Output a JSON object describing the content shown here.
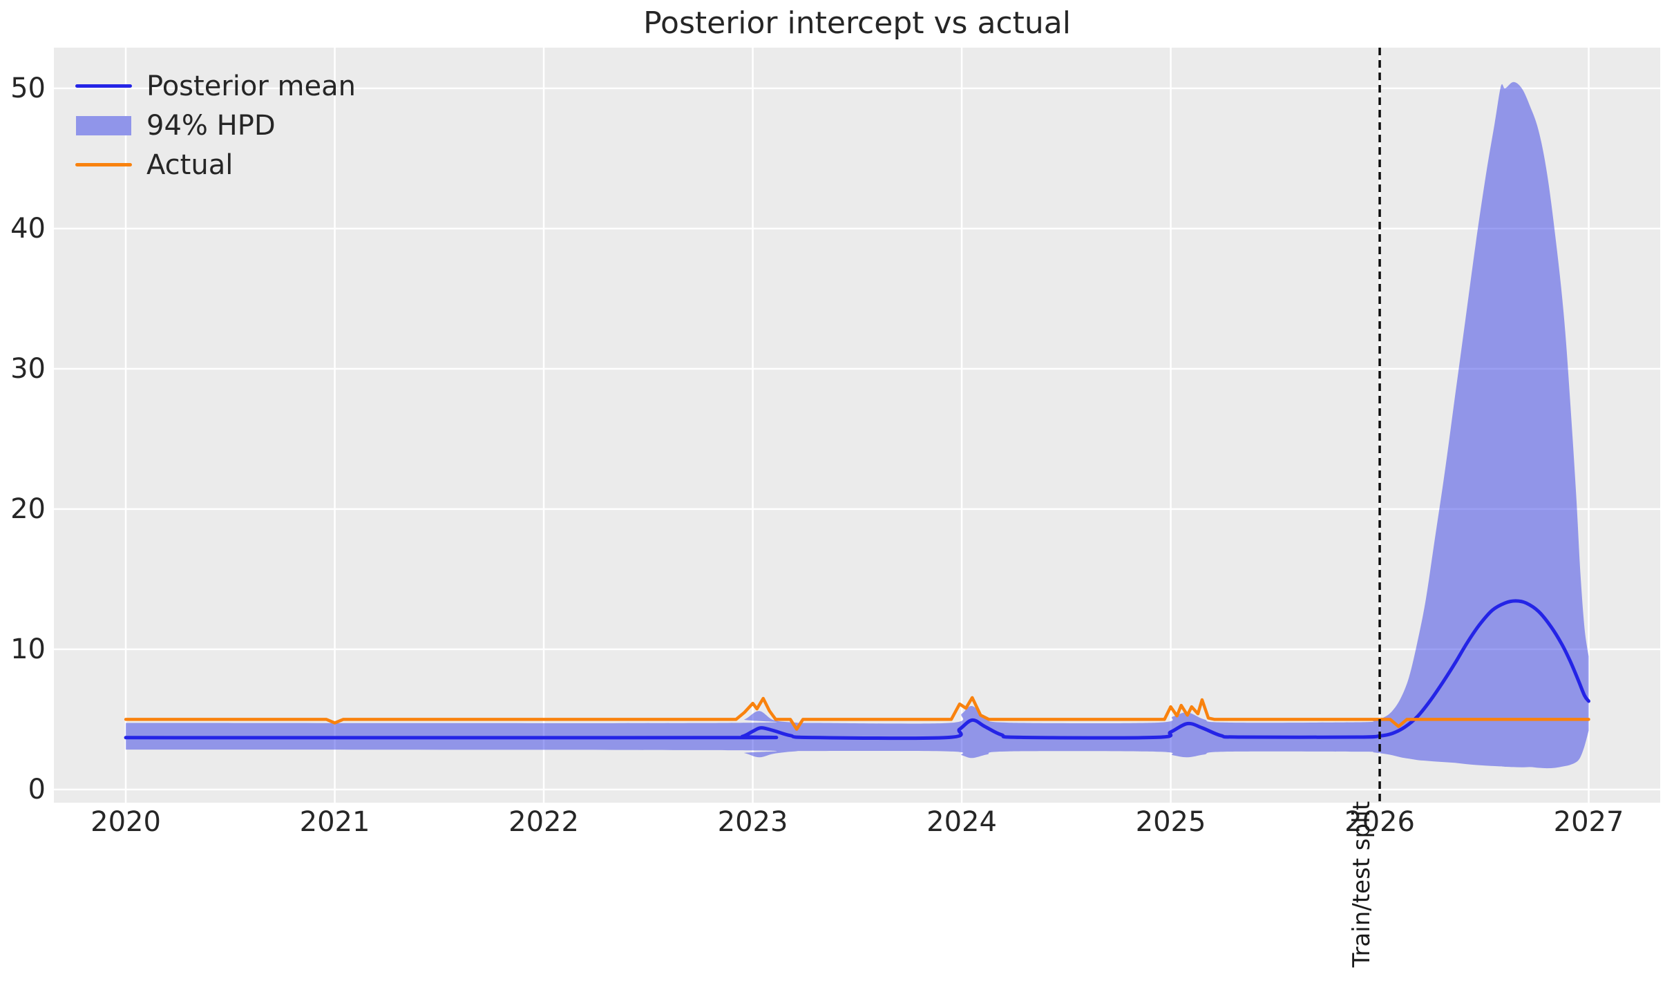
{
  "title": "Posterior intercept vs actual",
  "legend": {
    "items": [
      {
        "label": "Posterior mean",
        "swatch": "line",
        "color_key": "posterior_mean"
      },
      {
        "label": "94% HPD",
        "swatch": "patch",
        "color_key": "hpd_band_legend"
      },
      {
        "label": "Actual",
        "swatch": "line",
        "color_key": "actual"
      }
    ]
  },
  "annotations": {
    "train_test_split_label": "Train/test split",
    "split_x": 2026.0
  },
  "colors": {
    "posterior_mean": "#2424e6",
    "hpd_band_fill": "rgba(45,53,230,0.47)",
    "hpd_band_legend": "#9095ea",
    "actual": "#f9820e",
    "split_line": "#0d0d0d",
    "plot_bg": "#ebebeb",
    "grid": "#ffffff",
    "text": "#262626",
    "split_text": "#1a1a1a"
  },
  "chart_data": {
    "type": "line",
    "title": "Posterior intercept vs actual",
    "xlabel": "",
    "ylabel": "",
    "xlim": [
      2019.656,
      2027.342
    ],
    "ylim": [
      -0.94,
      52.9
    ],
    "x_ticks": [
      2020,
      2021,
      2022,
      2023,
      2024,
      2025,
      2026,
      2027
    ],
    "y_ticks": [
      0,
      10,
      20,
      30,
      40,
      50
    ],
    "grid": true,
    "legend_position": "upper left",
    "series": [
      {
        "name": "Posterior mean",
        "color_key": "posterior_mean",
        "smooth": true,
        "x": [
          2020.0,
          2022.88,
          2022.95,
          2023.0,
          2023.04,
          2023.1,
          2023.18,
          2023.28,
          2023.93,
          2023.99,
          2024.05,
          2024.11,
          2024.19,
          2024.28,
          2024.93,
          2025.0,
          2025.08,
          2025.15,
          2025.24,
          2025.33,
          2025.9,
          2026.0,
          2026.06,
          2026.12,
          2026.18,
          2026.24,
          2026.3,
          2026.36,
          2026.42,
          2026.48,
          2026.54,
          2026.6,
          2026.65,
          2026.7,
          2026.76,
          2026.82,
          2026.87,
          2026.91,
          2026.95,
          2026.98,
          2027.0
        ],
        "y": [
          3.7,
          3.7,
          3.78,
          4.15,
          4.4,
          4.2,
          3.85,
          3.71,
          3.71,
          4.3,
          4.95,
          4.5,
          3.9,
          3.72,
          3.72,
          4.1,
          4.7,
          4.4,
          3.85,
          3.74,
          3.74,
          3.82,
          4.0,
          4.45,
          5.2,
          6.3,
          7.6,
          9.0,
          10.5,
          11.8,
          12.8,
          13.3,
          13.45,
          13.3,
          12.7,
          11.6,
          10.4,
          9.2,
          7.8,
          6.7,
          6.3
        ]
      },
      {
        "name": "Actual",
        "color_key": "actual",
        "smooth": false,
        "x": [
          2020.0,
          2020.96,
          2021.0,
          2021.04,
          2022.92,
          2022.96,
          2023.0,
          2023.02,
          2023.05,
          2023.08,
          2023.11,
          2023.18,
          2023.21,
          2023.24,
          2023.95,
          2023.99,
          2024.02,
          2024.05,
          2024.09,
          2024.13,
          2024.97,
          2025.0,
          2025.03,
          2025.05,
          2025.08,
          2025.1,
          2025.13,
          2025.15,
          2025.18,
          2025.21,
          2026.05,
          2026.09,
          2026.13,
          2027.0
        ],
        "y": [
          5,
          5,
          4.75,
          5,
          5,
          5.5,
          6.15,
          5.75,
          6.5,
          5.6,
          5,
          5,
          4.3,
          5,
          5,
          6.1,
          5.8,
          6.55,
          5.3,
          5,
          5,
          5.9,
          5.25,
          6.0,
          5.3,
          5.9,
          5.4,
          6.4,
          5.1,
          5,
          5,
          4.5,
          5,
          5
        ]
      }
    ],
    "band": {
      "name": "94% HPD",
      "color_key": "hpd_band_fill",
      "x": [
        2020.0,
        2022.88,
        2022.96,
        2023.03,
        2023.1,
        2023.2,
        2023.3,
        2023.94,
        2024.0,
        2024.05,
        2024.12,
        2024.22,
        2024.93,
        2025.01,
        2025.08,
        2025.16,
        2025.26,
        2025.9,
        2025.97,
        2026.02,
        2026.06,
        2026.1,
        2026.14,
        2026.18,
        2026.22,
        2026.26,
        2026.31,
        2026.36,
        2026.41,
        2026.46,
        2026.51,
        2026.55,
        2026.58,
        2026.6,
        2026.64,
        2026.68,
        2026.72,
        2026.76,
        2026.8,
        2026.84,
        2026.88,
        2026.91,
        2026.94,
        2026.96,
        2026.98,
        2027.0
      ],
      "upper": [
        4.75,
        4.75,
        5.0,
        5.6,
        4.95,
        4.78,
        4.75,
        4.75,
        5.4,
        5.95,
        5.1,
        4.77,
        4.77,
        5.2,
        5.5,
        5.0,
        4.78,
        4.8,
        4.92,
        5.15,
        5.6,
        6.5,
        8.0,
        10.5,
        13.5,
        17.5,
        22.5,
        28.0,
        33.5,
        39.0,
        44.0,
        47.5,
        50.15,
        50.0,
        50.45,
        50.0,
        48.7,
        47.0,
        44.0,
        39.5,
        34.0,
        28.0,
        21.0,
        15.5,
        11.5,
        9.5
      ],
      "lower": [
        2.85,
        2.8,
        2.6,
        2.3,
        2.55,
        2.72,
        2.75,
        2.72,
        2.45,
        2.25,
        2.5,
        2.72,
        2.7,
        2.45,
        2.3,
        2.5,
        2.7,
        2.7,
        2.65,
        2.55,
        2.45,
        2.3,
        2.2,
        2.1,
        2.05,
        2.0,
        1.95,
        1.9,
        1.82,
        1.75,
        1.7,
        1.67,
        1.65,
        1.62,
        1.6,
        1.58,
        1.6,
        1.55,
        1.52,
        1.55,
        1.65,
        1.75,
        1.95,
        2.3,
        3.1,
        4.2
      ]
    },
    "vline": {
      "x": 2026.0,
      "style": "dashed",
      "label": "Train/test split"
    }
  }
}
